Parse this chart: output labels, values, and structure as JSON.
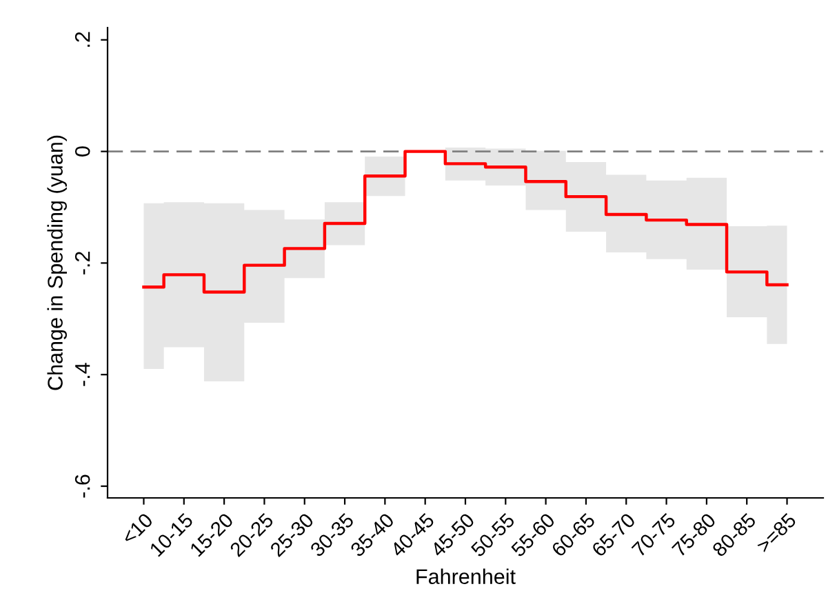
{
  "chart_data": {
    "type": "step",
    "xlabel": "Fahrenheit",
    "ylabel": "Change in Spending (yuan)",
    "categories": [
      "<10",
      "10-15",
      "15-20",
      "20-25",
      "25-30",
      "30-35",
      "35-40",
      "40-45",
      "45-50",
      "50-55",
      "55-60",
      "60-65",
      "65-70",
      "70-75",
      "75-80",
      "80-85",
      ">=85"
    ],
    "series": [
      {
        "color": "#ff0000",
        "values": [
          -0.243,
          -0.221,
          -0.252,
          -0.204,
          -0.174,
          -0.129,
          -0.044,
          0,
          -0.022,
          -0.028,
          -0.054,
          -0.081,
          -0.113,
          -0.123,
          -0.131,
          -0.216,
          -0.239
        ],
        "upper": [
          -0.093,
          -0.091,
          -0.093,
          -0.105,
          -0.122,
          -0.091,
          -0.009,
          0,
          0.007,
          0.005,
          0.001,
          -0.019,
          -0.042,
          -0.052,
          -0.047,
          -0.134,
          -0.133
        ],
        "lower": [
          -0.39,
          -0.351,
          -0.412,
          -0.307,
          -0.227,
          -0.168,
          -0.08,
          0,
          -0.052,
          -0.061,
          -0.105,
          -0.144,
          -0.181,
          -0.193,
          -0.212,
          -0.297,
          -0.345
        ]
      }
    ],
    "ylim": [
      -0.621,
      0.222
    ],
    "yticks": [
      {
        "value": 0.2,
        "label": ".2"
      },
      0,
      {
        "value": -0.2,
        "label": "-.2"
      },
      {
        "value": -0.4,
        "label": "-.4"
      },
      {
        "value": -0.6,
        "label": "-.6"
      }
    ],
    "ref_lines": [
      {
        "axis": "y",
        "value": 0,
        "color": "#808080",
        "line_style": "dashed"
      }
    ],
    "grid": false,
    "line_style": "solid",
    "marker": "none"
  }
}
